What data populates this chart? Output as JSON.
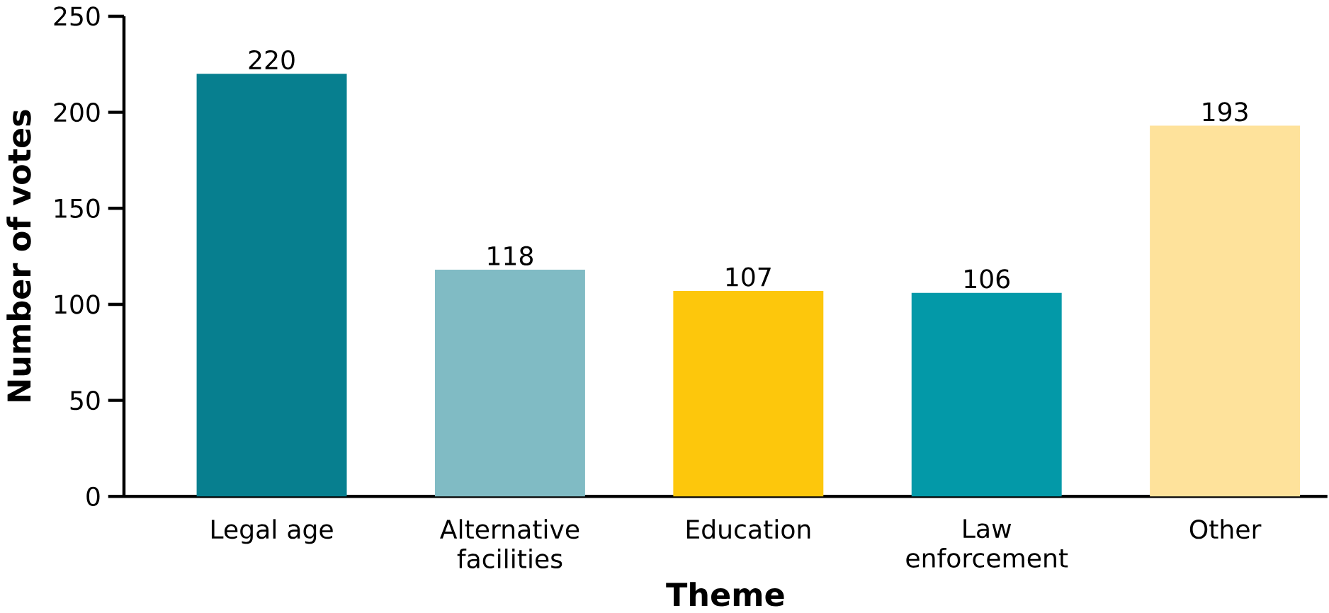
{
  "chart_data": {
    "type": "bar",
    "xlabel": "Theme",
    "ylabel": "Number of votes",
    "categories": [
      "Legal age",
      "Alternative facilities",
      "Education",
      "Law enforcement",
      "Other"
    ],
    "values": [
      220,
      118,
      107,
      106,
      193
    ],
    "colors": [
      "#077f8f",
      "#80bbc4",
      "#fdc70c",
      "#0399a8",
      "#fee29b"
    ],
    "ylim": [
      0,
      250
    ],
    "yticks": [
      0,
      50,
      100,
      150,
      200,
      250
    ],
    "data_labels": true,
    "grid": false
  }
}
